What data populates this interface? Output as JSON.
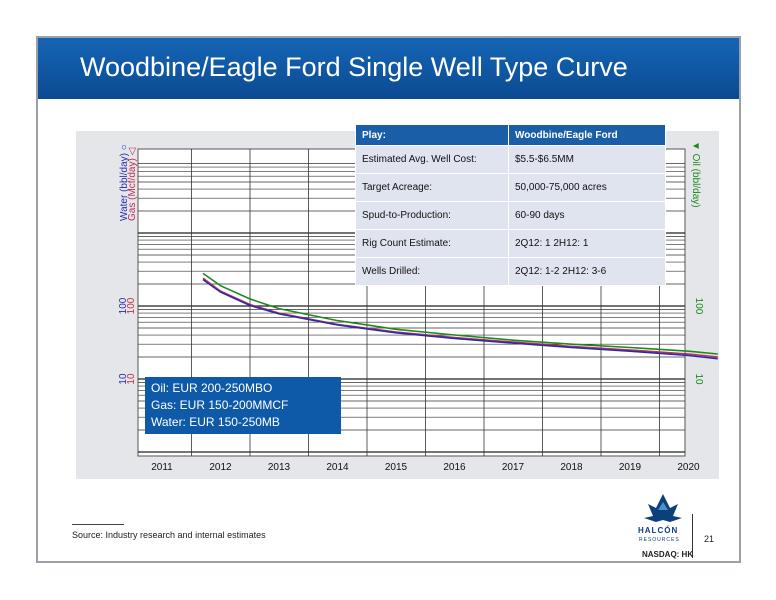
{
  "slide": {
    "title": "Woodbine/Eagle Ford Single Well Type Curve",
    "source": "Source: Industry research and internal estimates",
    "page_number": "21",
    "logo_name": "HALCÓN",
    "logo_sub": "RESOURCES",
    "ticker": "NASDAQ: HK",
    "logo_icon": "hawk-logo-icon"
  },
  "table": {
    "header": [
      "Play:",
      "Woodbine/Eagle Ford"
    ],
    "rows": [
      [
        "Estimated Avg. Well Cost:",
        "$5.5-$6.5MM"
      ],
      [
        "Target Acreage:",
        "50,000-75,000 acres"
      ],
      [
        "Spud-to-Production:",
        "60-90 days"
      ],
      [
        "Rig Count Estimate:",
        "2Q12: 1  2H12: 1"
      ],
      [
        "Wells Drilled:",
        "2Q12: 1-2  2H12: 3-6"
      ]
    ]
  },
  "eur_box": [
    "Oil: EUR 200-250MBO",
    "Gas: EUR 150-200MMCF",
    "Water: EUR 150-250MB"
  ],
  "chart_data": {
    "type": "line",
    "x_ticks": [
      "2011",
      "2012",
      "2013",
      "2014",
      "2015",
      "2016",
      "2017",
      "2018",
      "2019",
      "2020"
    ],
    "left_axis_labels": [
      "Water (bbl/day)",
      "Gas (Mcf/day)"
    ],
    "right_axis_label": "Oil (bbl/day)",
    "left_ticks_water": [
      "100",
      "10"
    ],
    "left_ticks_gas": [
      "100",
      "10"
    ],
    "right_ticks": [
      "100",
      "10"
    ],
    "y_scale": "log",
    "grid": true,
    "colors": {
      "oil": "#1e8a1e",
      "gas": "#c0304a",
      "water": "#2a2ab0"
    },
    "series": [
      {
        "name": "Oil",
        "color": "#1e8a1e",
        "x": [
          2011.7,
          2012.0,
          2012.5,
          2013,
          2014,
          2015,
          2016,
          2017,
          2018,
          2019,
          2020,
          2020.5
        ],
        "y": [
          280,
          190,
          125,
          92,
          63,
          48,
          40,
          34,
          30,
          27,
          24,
          22
        ]
      },
      {
        "name": "Gas",
        "color": "#c0304a",
        "x": [
          2011.7,
          2012.0,
          2012.5,
          2013,
          2014,
          2015,
          2016,
          2017,
          2018,
          2019,
          2020,
          2020.5
        ],
        "y": [
          240,
          160,
          105,
          80,
          56,
          44,
          37,
          32,
          28,
          25,
          22,
          20
        ]
      },
      {
        "name": "Water",
        "color": "#2a2ab0",
        "x": [
          2011.7,
          2012.0,
          2012.5,
          2013,
          2014,
          2015,
          2016,
          2017,
          2018,
          2019,
          2020,
          2020.5
        ],
        "y": [
          230,
          155,
          102,
          78,
          55,
          43,
          36,
          31,
          27,
          24,
          21,
          19
        ]
      }
    ]
  }
}
